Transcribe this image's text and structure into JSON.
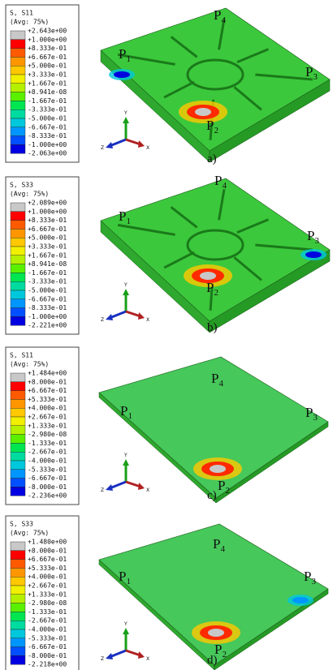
{
  "panels": [
    {
      "legend": {
        "title": "S, S11",
        "average": "(Avg: 75%)",
        "labels": [
          "+2.643e+00",
          "+1.000e+00",
          "+8.333e-01",
          "+6.667e-01",
          "+5.000e-01",
          "+3.333e-01",
          "+1.667e-01",
          "+8.941e-08",
          "-1.667e-01",
          "-3.333e-01",
          "-5.000e-01",
          "-6.667e-01",
          "-8.333e-01",
          "-1.000e+00",
          "-2.063e+00"
        ]
      },
      "points": [
        {
          "letter": "P",
          "index": "1"
        },
        {
          "letter": "P",
          "index": "2"
        },
        {
          "letter": "P",
          "index": "3"
        },
        {
          "letter": "P",
          "index": "4"
        }
      ],
      "triad": [
        "Y",
        "Z",
        "X"
      ],
      "caption": "a)"
    },
    {
      "legend": {
        "title": "S, S33",
        "average": "(Avg: 75%)",
        "labels": [
          "+2.089e+00",
          "+1.000e+00",
          "+8.333e-01",
          "+6.667e-01",
          "+5.000e-01",
          "+3.333e-01",
          "+1.667e-01",
          "+8.941e-08",
          "-1.667e-01",
          "-3.333e-01",
          "-5.000e-01",
          "-6.667e-01",
          "-8.333e-01",
          "-1.000e+00",
          "-2.221e+00"
        ]
      },
      "points": [
        {
          "letter": "P",
          "index": "1"
        },
        {
          "letter": "P",
          "index": "2"
        },
        {
          "letter": "P",
          "index": "3"
        },
        {
          "letter": "P",
          "index": "4"
        }
      ],
      "triad": [
        "Y",
        "Z",
        "X"
      ],
      "caption": "b)"
    },
    {
      "legend": {
        "title": "S, S11",
        "average": "(Avg: 75%)",
        "labels": [
          "+1.484e+00",
          "+8.000e-01",
          "+6.667e-01",
          "+5.333e-01",
          "+4.000e-01",
          "+2.667e-01",
          "+1.333e-01",
          "-2.980e-08",
          "-1.333e-01",
          "-2.667e-01",
          "-4.000e-01",
          "-5.333e-01",
          "-6.667e-01",
          "-8.000e-01",
          "-2.236e+00"
        ]
      },
      "points": [
        {
          "letter": "P",
          "index": "1"
        },
        {
          "letter": "P",
          "index": "2"
        },
        {
          "letter": "P",
          "index": "3"
        },
        {
          "letter": "P",
          "index": "4"
        }
      ],
      "triad": [
        "Y",
        "Z",
        "X"
      ],
      "caption": "c)"
    },
    {
      "legend": {
        "title": "S, S33",
        "average": "(Avg: 75%)",
        "labels": [
          "+1.480e+00",
          "+8.000e-01",
          "+6.667e-01",
          "+5.333e-01",
          "+4.000e-01",
          "+2.667e-01",
          "+1.333e-01",
          "-2.980e-08",
          "-1.333e-01",
          "-2.667e-01",
          "-4.000e-01",
          "-5.333e-01",
          "-6.667e-01",
          "-8.000e-01",
          "-2.218e+00"
        ]
      },
      "points": [
        {
          "letter": "P",
          "index": "1"
        },
        {
          "letter": "P",
          "index": "2"
        },
        {
          "letter": "P",
          "index": "3"
        },
        {
          "letter": "P",
          "index": "4"
        }
      ],
      "triad": [
        "Y",
        "Z",
        "X"
      ],
      "caption": "d)"
    }
  ]
}
